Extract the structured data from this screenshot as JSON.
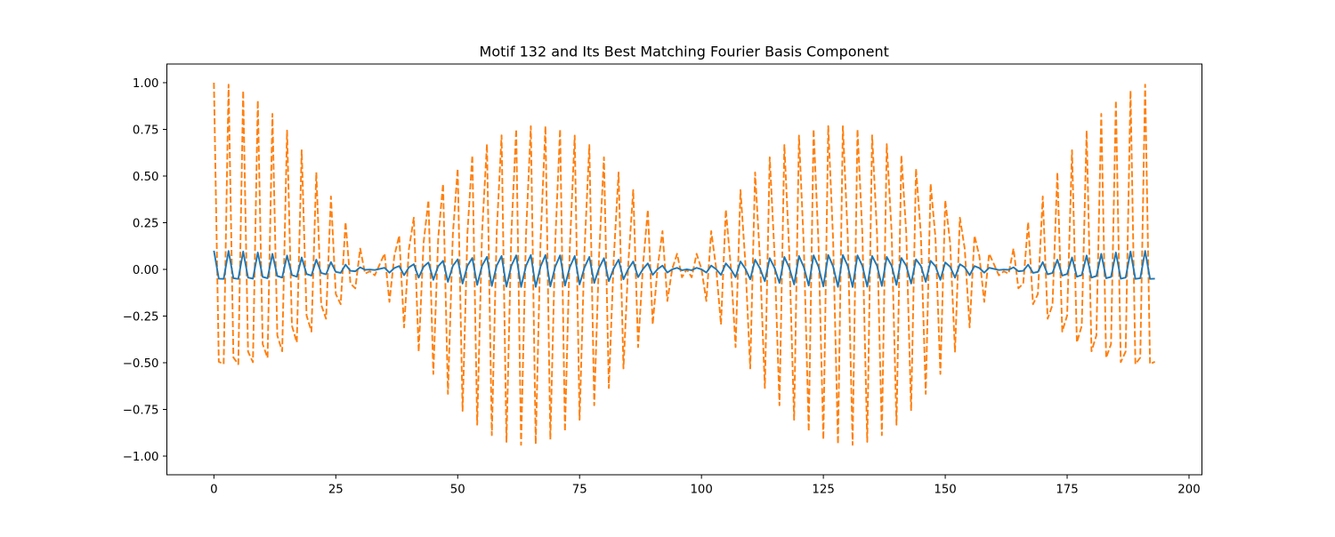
{
  "chart_data": {
    "type": "line",
    "title": "Motif 132 and Its Best Matching Fourier Basis Component",
    "xlabel": "",
    "ylabel": "",
    "xlim": [
      -9.65,
      202.65
    ],
    "ylim": [
      -1.1,
      1.1
    ],
    "x_ticks": [
      0,
      25,
      50,
      75,
      100,
      125,
      150,
      175,
      200
    ],
    "x_tick_labels": [
      "0",
      "25",
      "50",
      "75",
      "100",
      "125",
      "150",
      "175",
      "200"
    ],
    "y_ticks": [
      -1.0,
      -0.75,
      -0.5,
      -0.25,
      0.0,
      0.25,
      0.5,
      0.75,
      1.0
    ],
    "y_tick_labels": [
      "−1.00",
      "−0.75",
      "−0.50",
      "−0.25",
      "0.00",
      "0.25",
      "0.50",
      "0.75",
      "1.00"
    ],
    "grid": false,
    "legend": "none",
    "n_points": 194,
    "series": [
      {
        "color": "#1f77b4",
        "style": "solid",
        "generator": {
          "kind": "sum_of_cosines",
          "frequency_bins": [
            66,
            63
          ],
          "component_amplitude": 0.05,
          "samples_per_period": 194
        }
      },
      {
        "color": "#ff7f0e",
        "style": "dashed",
        "generator": {
          "kind": "sum_of_cosines",
          "frequency_bins": [
            66,
            63
          ],
          "component_amplitude": 0.5,
          "samples_per_period": 194
        }
      }
    ]
  }
}
